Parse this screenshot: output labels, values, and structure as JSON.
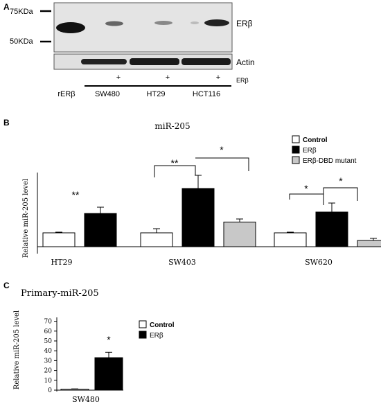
{
  "panel_a": {
    "letter": "A",
    "marker_top": "75KDa",
    "marker_bottom": "50KDa",
    "band_label_top": "ERβ",
    "band_label_bottom": "Actin",
    "treatment_label": "ERβ",
    "plus_sign": "+",
    "lanes": [
      "rERβ",
      "SW480",
      "HT29",
      "HCT116"
    ]
  },
  "panel_b": {
    "letter": "B",
    "legend": [
      "Control",
      "ERβ",
      "ERβ-DBD mutant"
    ],
    "colors": {
      "control": "#ffffff",
      "erb": "#000000",
      "dbd": "#c8c8c8"
    }
  },
  "panel_c": {
    "letter": "C",
    "legend": [
      "Control",
      "ERβ"
    ]
  },
  "chart_data": [
    {
      "type": "bar",
      "title": "miR-205",
      "ylabel": "Relative miR-205 level",
      "xlabel": "",
      "ylim": [
        0,
        6
      ],
      "grid": false,
      "legend_position": "top-right",
      "categories": [
        "HT29",
        "SW403",
        "SW620"
      ],
      "series": [
        {
          "name": "Control",
          "values": [
            1.0,
            1.0,
            1.0
          ],
          "errors": [
            0.05,
            0.3,
            0.05
          ]
        },
        {
          "name": "ERβ",
          "values": [
            2.4,
            4.2,
            2.5
          ],
          "errors": [
            0.45,
            0.95,
            0.65
          ]
        },
        {
          "name": "ERβ-DBD mutant",
          "values": [
            null,
            1.78,
            0.45
          ],
          "errors": [
            null,
            0.22,
            0.15
          ]
        }
      ],
      "annotations": [
        "**",
        "**",
        "*",
        "*",
        "*"
      ]
    },
    {
      "type": "bar",
      "title": "Primary-miR-205",
      "ylabel": "Relative miR-205 level",
      "xlabel": "",
      "ylim": [
        0,
        70
      ],
      "yticks": [
        "0",
        "10",
        "20",
        "30",
        "40",
        "50",
        "60",
        "70"
      ],
      "grid": false,
      "legend_position": "top-right",
      "categories": [
        "SW480"
      ],
      "series": [
        {
          "name": "Control",
          "values": [
            1.0
          ],
          "errors": [
            0.3
          ]
        },
        {
          "name": "ERβ",
          "values": [
            33
          ],
          "errors": [
            5.5
          ]
        }
      ],
      "annotations": [
        "*"
      ]
    }
  ]
}
